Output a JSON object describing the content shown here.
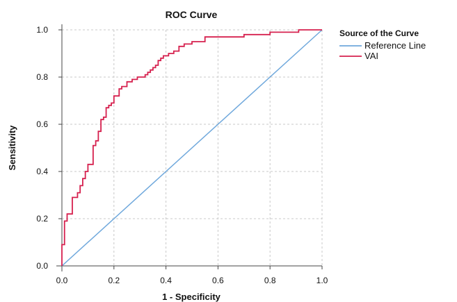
{
  "chart_data": {
    "type": "line",
    "title": "ROC Curve",
    "xlabel": "1 - Specificity",
    "ylabel": "Sensitivity",
    "xlim": [
      0,
      1
    ],
    "ylim": [
      0,
      1
    ],
    "x_ticks": [
      "0.0",
      "0.2",
      "0.4",
      "0.6",
      "0.8",
      "1.0"
    ],
    "y_ticks": [
      "0.0",
      "0.2",
      "0.4",
      "0.6",
      "0.8",
      "1.0"
    ],
    "grid": true,
    "legend_title": "Source of the Curve",
    "legend_position": "right",
    "series": [
      {
        "name": "Reference Line",
        "color": "#6fa8dc",
        "step": false,
        "points": [
          [
            0,
            0
          ],
          [
            1,
            1
          ]
        ]
      },
      {
        "name": "VAI",
        "color": "#d6204e",
        "step": true,
        "points": [
          [
            0.0,
            0.0
          ],
          [
            0.0,
            0.09
          ],
          [
            0.01,
            0.09
          ],
          [
            0.01,
            0.19
          ],
          [
            0.02,
            0.19
          ],
          [
            0.02,
            0.22
          ],
          [
            0.04,
            0.22
          ],
          [
            0.04,
            0.29
          ],
          [
            0.06,
            0.29
          ],
          [
            0.06,
            0.31
          ],
          [
            0.07,
            0.31
          ],
          [
            0.07,
            0.34
          ],
          [
            0.08,
            0.34
          ],
          [
            0.08,
            0.37
          ],
          [
            0.09,
            0.37
          ],
          [
            0.09,
            0.4
          ],
          [
            0.1,
            0.4
          ],
          [
            0.1,
            0.43
          ],
          [
            0.12,
            0.43
          ],
          [
            0.12,
            0.51
          ],
          [
            0.13,
            0.51
          ],
          [
            0.13,
            0.53
          ],
          [
            0.14,
            0.53
          ],
          [
            0.14,
            0.57
          ],
          [
            0.15,
            0.57
          ],
          [
            0.15,
            0.62
          ],
          [
            0.16,
            0.62
          ],
          [
            0.16,
            0.63
          ],
          [
            0.17,
            0.63
          ],
          [
            0.17,
            0.67
          ],
          [
            0.18,
            0.67
          ],
          [
            0.18,
            0.68
          ],
          [
            0.19,
            0.68
          ],
          [
            0.19,
            0.69
          ],
          [
            0.2,
            0.69
          ],
          [
            0.2,
            0.72
          ],
          [
            0.22,
            0.72
          ],
          [
            0.22,
            0.75
          ],
          [
            0.23,
            0.75
          ],
          [
            0.23,
            0.76
          ],
          [
            0.25,
            0.76
          ],
          [
            0.25,
            0.78
          ],
          [
            0.27,
            0.78
          ],
          [
            0.27,
            0.79
          ],
          [
            0.29,
            0.79
          ],
          [
            0.29,
            0.8
          ],
          [
            0.32,
            0.8
          ],
          [
            0.32,
            0.81
          ],
          [
            0.33,
            0.81
          ],
          [
            0.33,
            0.82
          ],
          [
            0.34,
            0.82
          ],
          [
            0.34,
            0.83
          ],
          [
            0.35,
            0.83
          ],
          [
            0.35,
            0.84
          ],
          [
            0.36,
            0.84
          ],
          [
            0.36,
            0.85
          ],
          [
            0.37,
            0.85
          ],
          [
            0.37,
            0.87
          ],
          [
            0.38,
            0.87
          ],
          [
            0.38,
            0.88
          ],
          [
            0.39,
            0.88
          ],
          [
            0.39,
            0.89
          ],
          [
            0.41,
            0.89
          ],
          [
            0.41,
            0.9
          ],
          [
            0.43,
            0.9
          ],
          [
            0.43,
            0.91
          ],
          [
            0.45,
            0.91
          ],
          [
            0.45,
            0.93
          ],
          [
            0.47,
            0.93
          ],
          [
            0.47,
            0.94
          ],
          [
            0.5,
            0.94
          ],
          [
            0.5,
            0.95
          ],
          [
            0.55,
            0.95
          ],
          [
            0.55,
            0.97
          ],
          [
            0.7,
            0.97
          ],
          [
            0.7,
            0.98
          ],
          [
            0.8,
            0.98
          ],
          [
            0.8,
            0.99
          ],
          [
            0.91,
            0.99
          ],
          [
            0.91,
            1.0
          ],
          [
            1.0,
            1.0
          ]
        ]
      }
    ]
  }
}
